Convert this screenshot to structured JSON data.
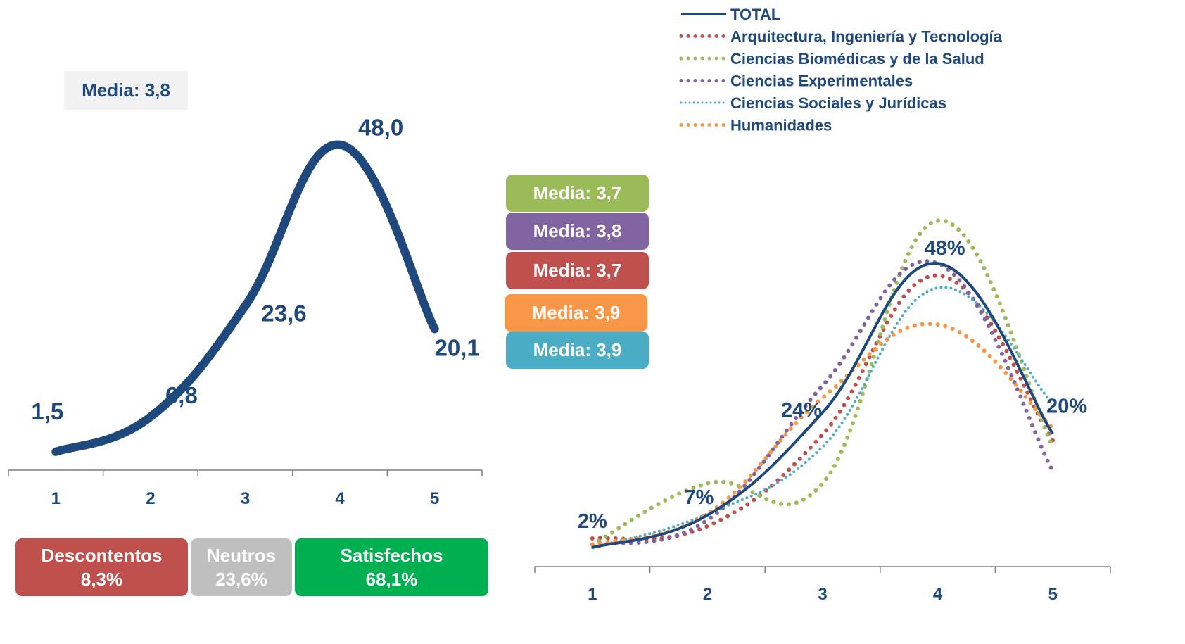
{
  "colors": {
    "total": "#1f497d",
    "arquitectura": "#c0504d",
    "biomedicas": "#9bbb59",
    "experimentales": "#8064a2",
    "sociales": "#4bacc6",
    "humanidades": "#f79646",
    "descontentos": "#c0504d",
    "neutros": "#bfbfbf",
    "satisfechos": "#00b050",
    "media_box": "#f2f2f2"
  },
  "left_panel": {
    "media_label": "Media: 3,8",
    "summary": [
      {
        "label": "Descontentos",
        "value": "8,3%"
      },
      {
        "label": "Neutros",
        "value": "23,6%"
      },
      {
        "label": "Satisfechos",
        "value": "68,1%"
      }
    ]
  },
  "media_boxes": [
    {
      "label": "Media: 3,7",
      "color": "#9bbb59"
    },
    {
      "label": "Media: 3,8",
      "color": "#8064a2"
    },
    {
      "label": "Media: 3,7",
      "color": "#c0504d"
    },
    {
      "label": "Media: 3,9",
      "color": "#f79646"
    },
    {
      "label": "Media: 3,9",
      "color": "#4bacc6"
    }
  ],
  "chart_data": [
    {
      "type": "line",
      "categories": [
        "1",
        "2",
        "3",
        "4",
        "5"
      ],
      "series": [
        {
          "name": "",
          "values": [
            1.5,
            6.8,
            23.6,
            48.0,
            20.1
          ]
        }
      ],
      "data_labels": [
        "1,5",
        "6,8",
        "23,6",
        "48,0",
        "20,1"
      ],
      "ylim": [
        0,
        55
      ],
      "grid": false,
      "legend": "none"
    },
    {
      "type": "line",
      "categories": [
        "1",
        "2",
        "3",
        "4",
        "5"
      ],
      "series": [
        {
          "name": "TOTAL",
          "values": [
            1.5,
            6.8,
            23.6,
            48.0,
            20.1
          ],
          "style": "solid",
          "color": "#1f497d"
        },
        {
          "name": "Arquitectura, Ingeniería y Tecnología",
          "values": [
            3,
            5,
            20,
            46,
            19
          ],
          "style": "dotted",
          "color": "#c0504d"
        },
        {
          "name": "Ciencias Biomédicas y de la Salud",
          "values": [
            2,
            12,
            12,
            55,
            18
          ],
          "style": "dotted",
          "color": "#9bbb59"
        },
        {
          "name": "Ciencias Experimentales",
          "values": [
            2,
            6,
            28,
            48,
            14
          ],
          "style": "dotted",
          "color": "#8064a2"
        },
        {
          "name": "Ciencias Sociales y Jurídicas",
          "values": [
            1.5,
            7,
            18,
            44,
            25
          ],
          "style": "dotted",
          "color": "#4bacc6"
        },
        {
          "name": "Humanidades",
          "values": [
            2,
            7,
            26,
            38,
            21
          ],
          "style": "dotted",
          "color": "#f79646"
        }
      ],
      "data_labels": [
        "2%",
        "7%",
        "24%",
        "48%",
        "20%"
      ],
      "ylim": [
        0,
        60
      ],
      "grid": false,
      "legend": "top-right"
    }
  ]
}
